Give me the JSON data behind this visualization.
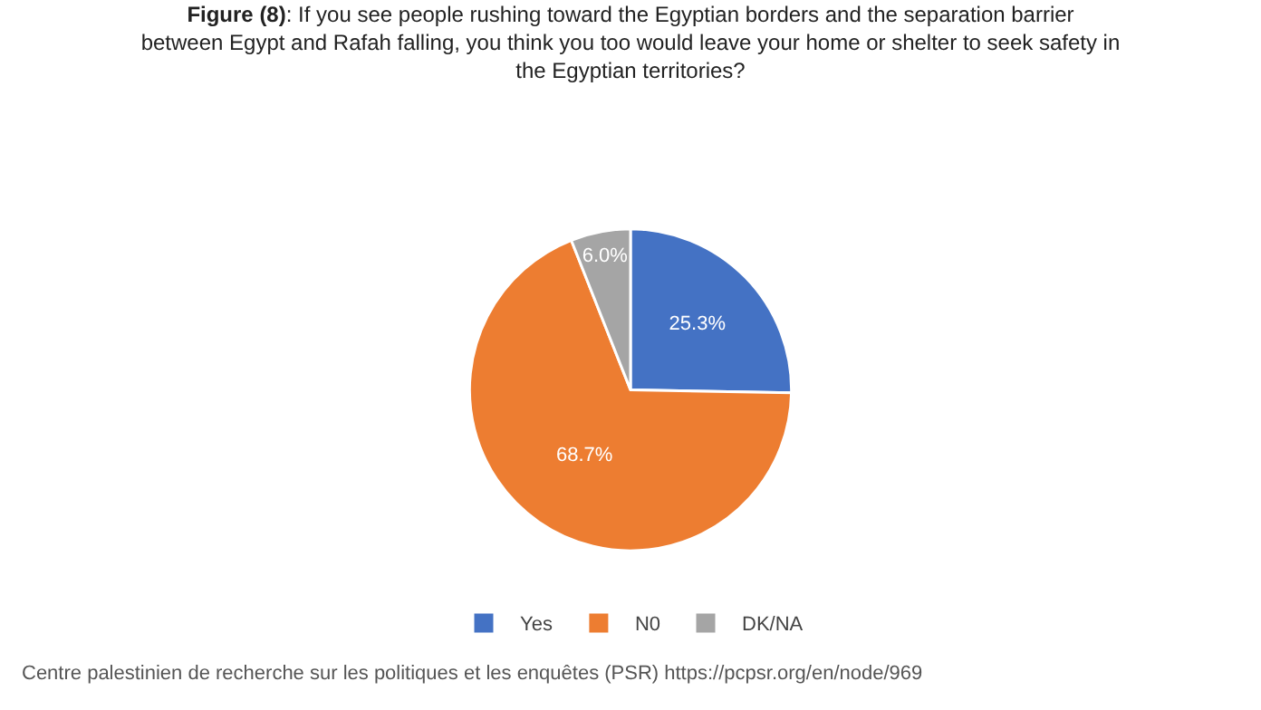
{
  "chart_data": {
    "type": "pie",
    "title": "Figure (8): If you see people rushing toward the Egyptian borders and the separation barrier between Egypt and Rafah falling, you think you too would leave your home or shelter to seek safety in the Egyptian territories?",
    "categories": [
      "Yes",
      "N0",
      "DK/NA"
    ],
    "values": [
      25.3,
      68.7,
      6.0
    ],
    "colors": [
      "#4472c4",
      "#ed7d31",
      "#a5a5a5"
    ],
    "value_labels": [
      "25.3%",
      "68.7%",
      "6.0%"
    ],
    "legend": "bottom",
    "annotations": [
      "Centre palestinien de recherche sur les politiques et les enquêtes (PSR) https://pcpsr.org/en/node/969"
    ]
  }
}
